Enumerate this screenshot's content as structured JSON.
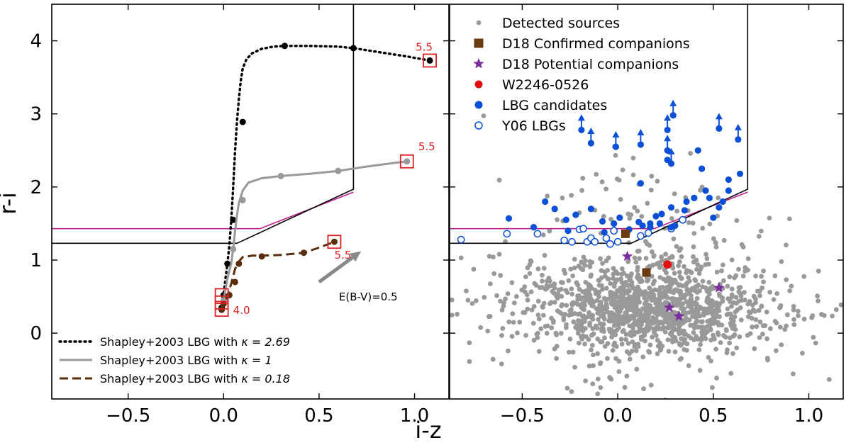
{
  "chart_data": [
    {
      "type": "line",
      "panel": "left",
      "xlabel": "i-z",
      "ylabel": "r-i",
      "xlim": [
        -0.9,
        1.18
      ],
      "ylim": [
        -0.9,
        4.5
      ],
      "xticks": [
        -0.5,
        0.0,
        0.5,
        1.0
      ],
      "xtick_labels": [
        "−0.5",
        "0.0",
        "0.5",
        "1.0"
      ],
      "yticks": [
        0,
        1,
        2,
        3,
        4
      ],
      "ytick_labels": [
        "0",
        "1",
        "2",
        "3",
        "4"
      ],
      "series": [
        {
          "name": "Shapley+2003 LBG with κ = 2.69",
          "legend_prefix": "Shapley+2003 LBG with ",
          "legend_kappa": "κ = 2.69",
          "color": "#000000",
          "style": "dotted",
          "x": [
            -0.01,
            0.0,
            0.01,
            0.02,
            0.03,
            0.04,
            0.05,
            0.06,
            0.07,
            0.08,
            0.09,
            0.1,
            0.12,
            0.15,
            0.2,
            0.26,
            0.32,
            0.45,
            0.6,
            0.68,
            0.8,
            0.95,
            1.08
          ],
          "y": [
            0.35,
            0.52,
            0.75,
            0.95,
            1.2,
            1.55,
            2.0,
            2.5,
            2.9,
            3.2,
            3.45,
            3.62,
            3.75,
            3.83,
            3.89,
            3.92,
            3.93,
            3.93,
            3.92,
            3.9,
            3.85,
            3.79,
            3.73
          ],
          "marker_x": [
            -0.01,
            0.0,
            0.02,
            0.05,
            0.1,
            0.32,
            0.68,
            1.08
          ],
          "marker_y": [
            0.35,
            0.52,
            0.95,
            1.55,
            2.89,
            3.93,
            3.9,
            3.73
          ]
        },
        {
          "name": "Shapley+2003 LBG with κ = 1",
          "legend_prefix": "Shapley+2003 LBG with ",
          "legend_kappa": "κ = 1",
          "color": "#999999",
          "style": "solid",
          "x": [
            -0.01,
            0.0,
            0.02,
            0.04,
            0.05,
            0.06,
            0.07,
            0.08,
            0.1,
            0.13,
            0.2,
            0.3,
            0.45,
            0.6,
            0.75,
            0.9,
            0.96
          ],
          "y": [
            0.32,
            0.45,
            0.75,
            0.95,
            1.15,
            1.4,
            1.62,
            1.78,
            1.95,
            2.06,
            2.12,
            2.15,
            2.18,
            2.22,
            2.28,
            2.33,
            2.35
          ],
          "marker_x": [
            -0.01,
            0.0,
            0.05,
            0.1,
            0.3,
            0.6,
            0.96
          ],
          "marker_y": [
            0.32,
            0.45,
            1.15,
            1.82,
            2.15,
            2.22,
            2.35
          ]
        },
        {
          "name": "Shapley+2003 LBG with κ = 0.18",
          "legend_prefix": "Shapley+2003 LBG with ",
          "legend_kappa": "κ = 0.18",
          "color": "#5a2d0c",
          "style": "dashed",
          "x": [
            -0.01,
            0.0,
            0.02,
            0.04,
            0.06,
            0.08,
            0.1,
            0.15,
            0.2,
            0.3,
            0.42,
            0.5,
            0.58
          ],
          "y": [
            0.3,
            0.38,
            0.5,
            0.68,
            0.88,
            0.98,
            1.04,
            1.06,
            1.06,
            1.07,
            1.1,
            1.17,
            1.25
          ],
          "marker_x": [
            -0.01,
            0.0,
            0.03,
            0.06,
            0.08,
            0.2,
            0.42,
            0.58
          ],
          "marker_y": [
            0.32,
            0.4,
            0.52,
            0.7,
            0.95,
            1.05,
            1.1,
            1.25
          ]
        }
      ],
      "boxed_points": [
        {
          "x": 1.08,
          "y": 3.73,
          "label": "5.5"
        },
        {
          "x": 0.96,
          "y": 2.35,
          "label": "5.5"
        },
        {
          "x": 0.58,
          "y": 1.25,
          "label": "5.5"
        },
        {
          "x": -0.01,
          "y": 0.32,
          "label": "4.0"
        },
        {
          "x": -0.01,
          "y": 0.42,
          "label": ""
        },
        {
          "x": -0.01,
          "y": 0.52,
          "label": ""
        }
      ],
      "selection_black": {
        "x": [
          -0.9,
          0.07,
          0.68,
          0.68
        ],
        "y": [
          1.23,
          1.23,
          1.97,
          4.5
        ]
      },
      "selection_magenta": {
        "x": [
          -0.9,
          0.19,
          0.68
        ],
        "y": [
          1.43,
          1.43,
          1.93
        ],
        "color": "#c0208f"
      },
      "reddening_arrow": {
        "x0": 0.5,
        "y0": 0.7,
        "x1": 0.72,
        "y1": 1.12,
        "label": "E(B-V)=0.5"
      }
    },
    {
      "type": "scatter",
      "panel": "right",
      "xlabel": "i-z",
      "ylabel": "r-i",
      "xlim": [
        -0.88,
        1.18
      ],
      "ylim": [
        -0.9,
        4.5
      ],
      "xticks": [
        -0.5,
        0.0,
        0.5,
        1.0
      ],
      "xtick_labels": [
        "−0.5",
        "0.0",
        "0.5",
        "1.0"
      ],
      "yticks": [
        0,
        1,
        2,
        3,
        4
      ],
      "legend": [
        {
          "label": "Detected sources",
          "marker": "small-dot",
          "color": "#999999"
        },
        {
          "label": "D18 Confirmed companions",
          "marker": "square",
          "color": "#6b3a10"
        },
        {
          "label": "D18 Potential companions",
          "marker": "star",
          "color": "#7b2d9e"
        },
        {
          "label": "W2246-0526",
          "marker": "circle",
          "color": "#e01010"
        },
        {
          "label": "LBG candidates",
          "marker": "circle",
          "color": "#0a4fd8"
        },
        {
          "label": "Y06 LBGs",
          "marker": "open-circle",
          "color": "#0a4fd8"
        }
      ],
      "detected_sources": {
        "n": 1400,
        "center_x": 0.15,
        "center_y": 0.35,
        "sd_x": 0.3,
        "sd_y": 0.3,
        "seed": 7
      },
      "confirmed_companions": {
        "x": [
          0.04,
          0.15
        ],
        "y": [
          1.36,
          0.83
        ]
      },
      "potential_companions": {
        "x": [
          0.05,
          0.27,
          0.32,
          0.53
        ],
        "y": [
          1.05,
          0.35,
          0.23,
          0.62
        ]
      },
      "w2246": {
        "x": [
          0.26
        ],
        "y": [
          0.94
        ]
      },
      "lbg_candidates": {
        "x": [
          -0.57,
          -0.44,
          -0.38,
          -0.33,
          -0.27,
          -0.22,
          -0.14,
          -0.08,
          0.01,
          0.06,
          0.13,
          0.17,
          0.2,
          0.23,
          0.28,
          0.35,
          0.4,
          0.44,
          0.48,
          0.53,
          0.55,
          0.58,
          0.64,
          -0.26,
          -0.07,
          -0.02,
          0.12,
          0.17,
          0.22,
          0.3,
          0.36,
          0.42,
          0.46,
          0.5,
          0.58,
          0.11,
          0.26,
          0.28
        ],
        "y": [
          1.57,
          1.45,
          1.8,
          1.7,
          1.55,
          1.62,
          1.7,
          1.53,
          1.58,
          1.42,
          1.47,
          1.5,
          1.6,
          1.63,
          1.45,
          1.68,
          1.85,
          2.25,
          1.85,
          1.72,
          1.8,
          2.1,
          2.18,
          1.4,
          1.38,
          1.5,
          2.05,
          1.45,
          1.5,
          1.47,
          1.8,
          2.5,
          1.95,
          1.58,
          1.95,
          1.52,
          2.37,
          1.72
        ],
        "upper_limits": {
          "x": [
            -0.19,
            -0.14,
            -0.01,
            0.12,
            0.26,
            0.29,
            0.28,
            0.26,
            0.53,
            0.63
          ],
          "y": [
            2.78,
            2.6,
            2.55,
            2.58,
            2.78,
            2.98,
            2.32,
            2.5,
            2.8,
            2.65
          ]
        }
      },
      "y06_lbgs": {
        "x": [
          -0.82,
          -0.58,
          -0.42,
          -0.28,
          -0.24,
          -0.2,
          -0.18,
          -0.16,
          -0.14,
          -0.12,
          -0.06,
          -0.04,
          -0.02,
          0.0,
          0.12,
          0.16,
          0.28,
          0.34
        ],
        "y": [
          1.28,
          1.36,
          1.36,
          1.27,
          1.25,
          1.42,
          1.43,
          1.25,
          1.3,
          1.25,
          1.3,
          1.22,
          1.4,
          1.25,
          1.33,
          1.37,
          1.43,
          1.55
        ]
      },
      "selection_black": {
        "x": [
          -0.88,
          0.07,
          0.68,
          0.68
        ],
        "y": [
          1.23,
          1.23,
          1.97,
          4.5
        ]
      },
      "selection_magenta": {
        "x": [
          -0.88,
          0.19,
          0.68
        ],
        "y": [
          1.43,
          1.43,
          1.93
        ],
        "color": "#c0208f"
      }
    }
  ]
}
